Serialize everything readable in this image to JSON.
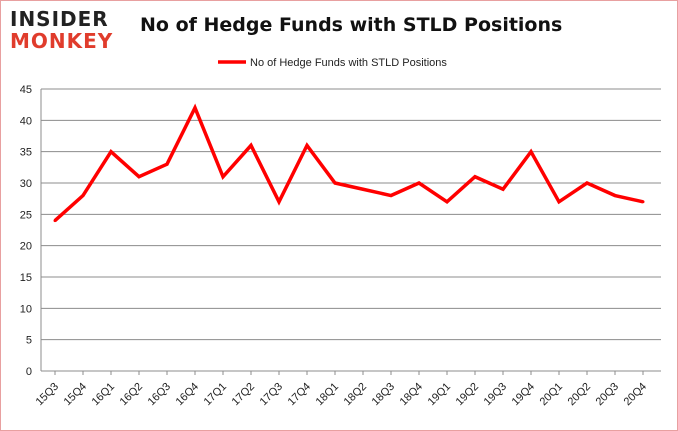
{
  "logo": {
    "line1": "INSIDER",
    "line2": "MONKEY"
  },
  "chart_data": {
    "type": "line",
    "title": "No of Hedge Funds with STLD Positions",
    "xlabel": "",
    "ylabel": "",
    "categories": [
      "15Q3",
      "15Q4",
      "16Q1",
      "16Q2",
      "16Q3",
      "16Q4",
      "17Q1",
      "17Q2",
      "17Q3",
      "17Q4",
      "18Q1",
      "18Q2",
      "18Q3",
      "18Q4",
      "19Q1",
      "19Q2",
      "19Q3",
      "19Q4",
      "20Q1",
      "20Q2",
      "20Q3",
      "20Q4"
    ],
    "series": [
      {
        "name": "No of Hedge Funds with STLD Positions",
        "color": "#ff0000",
        "values": [
          24,
          28,
          35,
          31,
          33,
          42,
          31,
          36,
          27,
          36,
          30,
          29,
          28,
          30,
          27,
          31,
          29,
          35,
          27,
          30,
          28,
          27
        ]
      }
    ],
    "ylim": [
      0,
      45
    ],
    "yticks": [
      0,
      5,
      10,
      15,
      20,
      25,
      30,
      35,
      40,
      45
    ],
    "grid": true,
    "legend": "top-center"
  }
}
